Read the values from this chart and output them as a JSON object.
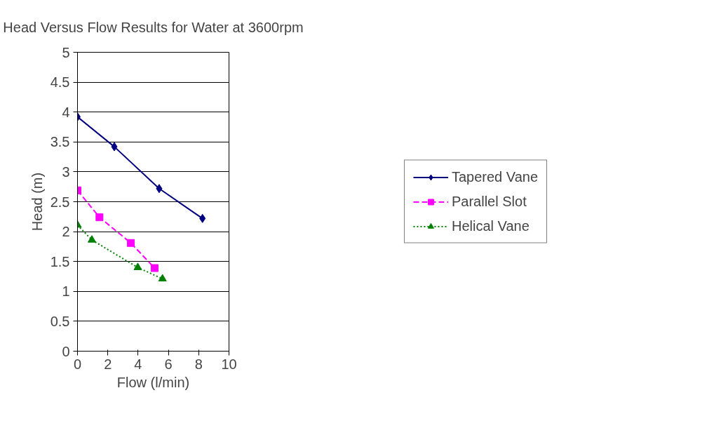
{
  "chart_data": {
    "type": "line",
    "title": "Head Versus Flow Results for Water at 3600rpm",
    "xlabel": "Flow (l/min)",
    "ylabel": "Head (m)",
    "xlim": [
      0,
      10
    ],
    "xticks": [
      0,
      2,
      4,
      6,
      8,
      10
    ],
    "ylim": [
      0,
      5
    ],
    "yticks": [
      0,
      0.5,
      1,
      1.5,
      2,
      2.5,
      3,
      3.5,
      4,
      4.5,
      5
    ],
    "grid": "y",
    "legend": "right",
    "series": [
      {
        "name": "Tapered Vane",
        "color": "#000080",
        "marker": "diamond",
        "line_style": "solid",
        "x": [
          0,
          2.43,
          5.39,
          8.25
        ],
        "values": [
          3.92,
          3.42,
          2.72,
          2.22
        ]
      },
      {
        "name": "Parallel Slot",
        "color": "#ff00ff",
        "marker": "square",
        "line_style": "dashed",
        "x": [
          0,
          1.45,
          3.52,
          5.09
        ],
        "values": [
          2.69,
          2.24,
          1.81,
          1.39
        ]
      },
      {
        "name": "Helical Vane",
        "color": "#008000",
        "marker": "triangle",
        "line_style": "dotted",
        "x": [
          0,
          0.95,
          3.98,
          5.61
        ],
        "values": [
          2.11,
          1.86,
          1.4,
          1.21
        ]
      }
    ]
  }
}
